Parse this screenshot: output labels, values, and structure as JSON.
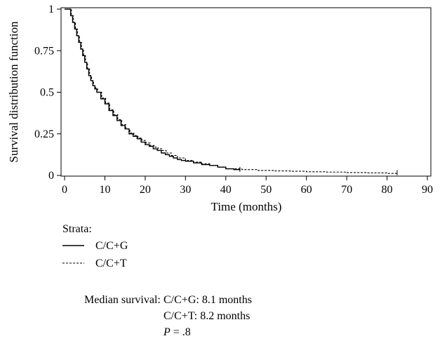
{
  "chart_data": {
    "type": "line",
    "xlabel": "Time (months)",
    "ylabel": "Survival distribution function",
    "xlim": [
      0,
      90
    ],
    "ylim": [
      0,
      1
    ],
    "x_ticks": [
      0,
      10,
      20,
      30,
      40,
      50,
      60,
      70,
      80,
      90
    ],
    "y_ticks": [
      0,
      0.25,
      0.5,
      0.75,
      1
    ],
    "y_tick_labels": [
      "0",
      "0.25",
      "0.5",
      "0.75",
      "1"
    ],
    "grid": false,
    "step": true,
    "legend": {
      "title": "Strata:",
      "placement": "below",
      "entries": [
        {
          "label": "C/C+G",
          "style": "solid"
        },
        {
          "label": "C/C+T",
          "style": "dashed"
        }
      ]
    },
    "series": [
      {
        "name": "C/C+G",
        "style": "solid",
        "x": [
          0,
          0.8,
          1.5,
          2,
          2.5,
          3,
          3.5,
          4,
          4.5,
          5,
          5.5,
          6,
          6.5,
          7,
          7.5,
          8,
          8.1,
          9,
          10,
          11,
          12,
          13,
          14,
          15,
          16,
          17,
          18,
          19,
          20,
          21,
          22,
          23,
          24,
          25,
          26,
          27,
          28,
          29,
          30,
          32,
          34,
          36,
          38,
          40,
          42,
          43.5
        ],
        "y": [
          1,
          1,
          0.96,
          0.92,
          0.88,
          0.84,
          0.8,
          0.76,
          0.72,
          0.68,
          0.64,
          0.6,
          0.57,
          0.54,
          0.52,
          0.5,
          0.5,
          0.46,
          0.43,
          0.39,
          0.36,
          0.33,
          0.3,
          0.28,
          0.25,
          0.235,
          0.22,
          0.2,
          0.185,
          0.175,
          0.16,
          0.15,
          0.135,
          0.125,
          0.115,
          0.105,
          0.095,
          0.09,
          0.085,
          0.075,
          0.065,
          0.06,
          0.05,
          0.04,
          0.035,
          0.03
        ]
      },
      {
        "name": "C/C+T",
        "style": "dashed",
        "x": [
          0,
          1,
          1.7,
          2.2,
          2.7,
          3.2,
          3.7,
          4.2,
          4.7,
          5.2,
          5.7,
          6.2,
          6.7,
          7.2,
          7.7,
          8.2,
          8.2,
          9.2,
          10.2,
          11.2,
          12.2,
          13.2,
          14.2,
          15.2,
          16.2,
          17.2,
          18.2,
          19.2,
          20.2,
          21.2,
          22.2,
          23.2,
          24.2,
          25.2,
          26.5,
          28,
          30,
          32,
          34,
          36,
          38,
          40,
          44,
          48,
          52,
          56,
          60,
          65,
          70,
          75,
          80,
          82.5
        ],
        "y": [
          1,
          1,
          0.96,
          0.92,
          0.88,
          0.84,
          0.8,
          0.76,
          0.72,
          0.68,
          0.64,
          0.6,
          0.57,
          0.54,
          0.52,
          0.5,
          0.5,
          0.465,
          0.435,
          0.395,
          0.365,
          0.335,
          0.305,
          0.28,
          0.255,
          0.24,
          0.225,
          0.21,
          0.195,
          0.18,
          0.17,
          0.16,
          0.15,
          0.135,
          0.12,
          0.105,
          0.09,
          0.08,
          0.07,
          0.06,
          0.05,
          0.04,
          0.035,
          0.03,
          0.027,
          0.025,
          0.022,
          0.02,
          0.017,
          0.015,
          0.012,
          0.01
        ]
      }
    ]
  },
  "notes": {
    "median_label": "Median survival:",
    "line1": "C/C+G: 8.1 months",
    "line2": "C/C+T: 8.2 months",
    "p_symbol": "P",
    "p_value": " = .8"
  }
}
